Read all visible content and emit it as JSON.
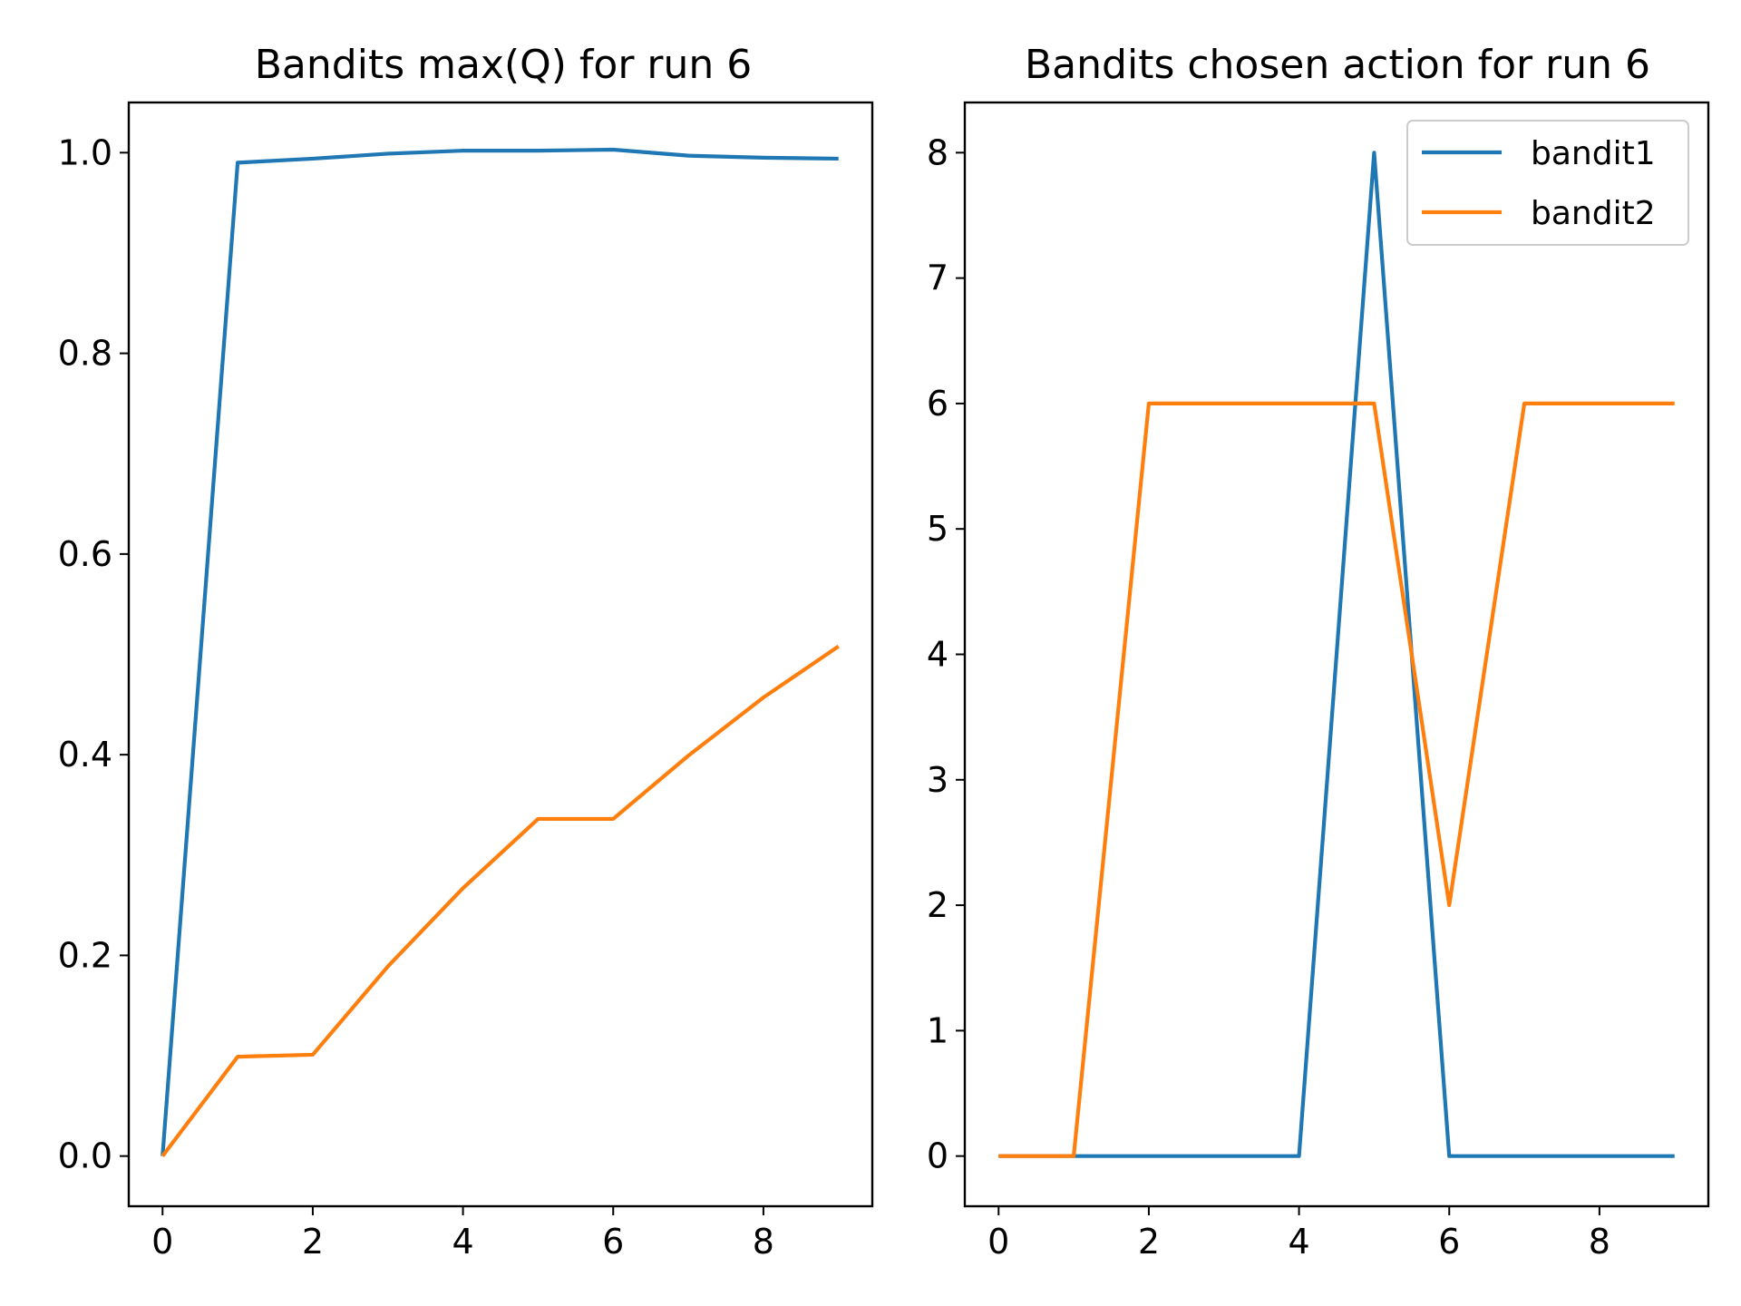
{
  "chart_data": [
    {
      "type": "line",
      "title": "Bandits max(Q) for run 6",
      "xlabel": "",
      "ylabel": "",
      "x": [
        0,
        1,
        2,
        3,
        4,
        5,
        6,
        7,
        8,
        9
      ],
      "xlim": [
        -0.45,
        9.45
      ],
      "ylim": [
        -0.05,
        1.05
      ],
      "xticks": [
        0,
        2,
        4,
        6,
        8
      ],
      "xtick_labels": [
        "0",
        "2",
        "4",
        "6",
        "8"
      ],
      "yticks": [
        0.0,
        0.2,
        0.4,
        0.6,
        0.8,
        1.0
      ],
      "ytick_labels": [
        "0.0",
        "0.2",
        "0.4",
        "0.6",
        "0.8",
        "1.0"
      ],
      "grid": false,
      "series": [
        {
          "color": "#1f77b4",
          "values": [
            0.0,
            0.99,
            0.994,
            0.999,
            1.002,
            1.002,
            1.003,
            0.997,
            0.995,
            0.994
          ]
        },
        {
          "color": "#ff7f0e",
          "values": [
            0.0,
            0.099,
            0.101,
            0.189,
            0.267,
            0.336,
            0.336,
            0.399,
            0.457,
            0.508
          ]
        }
      ]
    },
    {
      "type": "line",
      "title": "Bandits chosen action for run 6",
      "xlabel": "",
      "ylabel": "",
      "x": [
        0,
        1,
        2,
        3,
        4,
        5,
        6,
        7,
        8,
        9
      ],
      "xlim": [
        -0.45,
        9.45
      ],
      "ylim": [
        -0.4,
        8.4
      ],
      "xticks": [
        0,
        2,
        4,
        6,
        8
      ],
      "xtick_labels": [
        "0",
        "2",
        "4",
        "6",
        "8"
      ],
      "yticks": [
        0,
        1,
        2,
        3,
        4,
        5,
        6,
        7,
        8
      ],
      "ytick_labels": [
        "0",
        "1",
        "2",
        "3",
        "4",
        "5",
        "6",
        "7",
        "8"
      ],
      "grid": false,
      "legend_position": "top-right",
      "series": [
        {
          "name": "bandit1",
          "color": "#1f77b4",
          "values": [
            0,
            0,
            0,
            0,
            0,
            8,
            0,
            0,
            0,
            0
          ]
        },
        {
          "name": "bandit2",
          "color": "#ff7f0e",
          "values": [
            0,
            0,
            6,
            6,
            6,
            6,
            2,
            6,
            6,
            6
          ]
        }
      ]
    }
  ]
}
